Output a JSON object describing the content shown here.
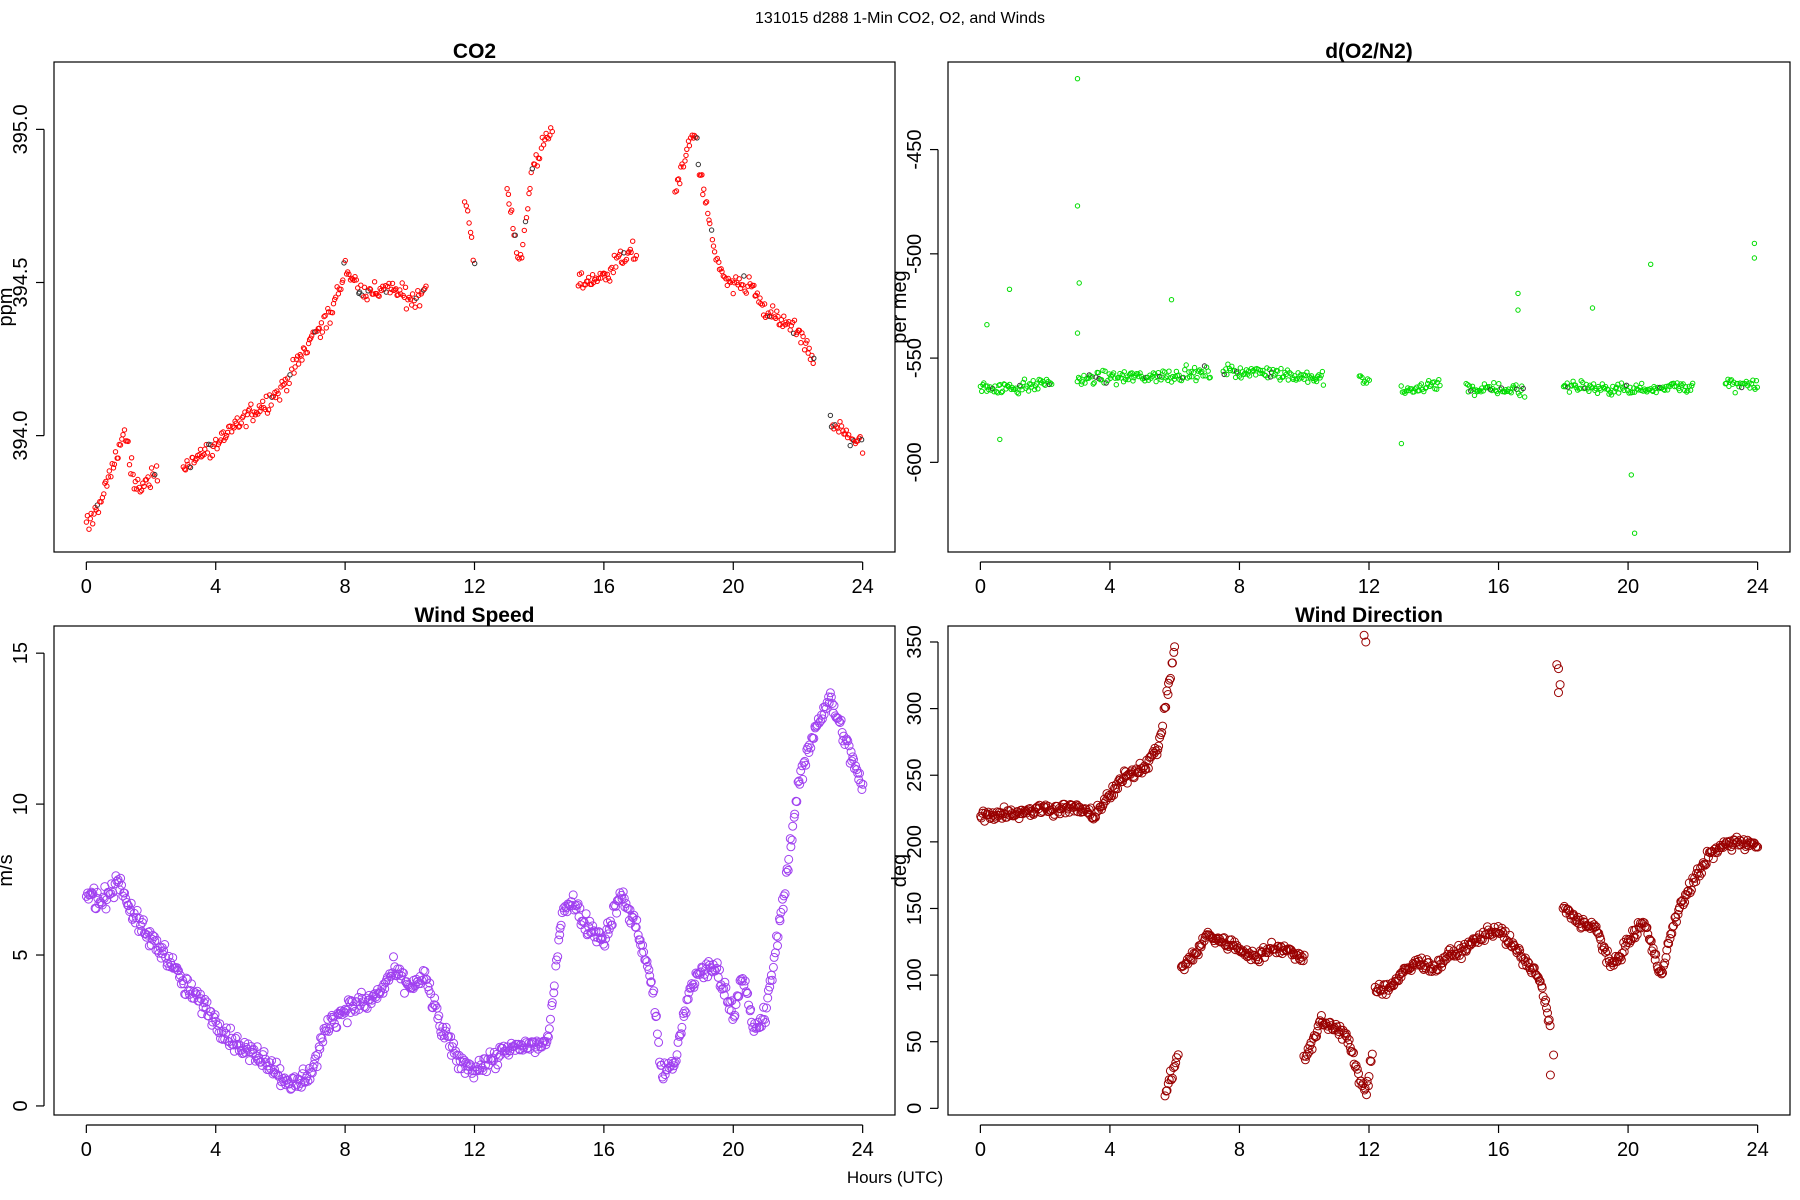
{
  "figure": {
    "title": "131015   d288   1-Min CO2, O2, and Winds",
    "xlabel": "Hours (UTC)"
  },
  "chart_data": [
    {
      "type": "scatter",
      "title": "CO2",
      "ylabel": "ppm",
      "xlim": [
        -1,
        25
      ],
      "ylim": [
        393.62,
        395.22
      ],
      "xticks": [
        0,
        4,
        8,
        12,
        16,
        20,
        24
      ],
      "yticks": [
        394.0,
        394.5,
        395.0
      ],
      "ytick_labels": [
        "394.0",
        "394.5",
        "395.0"
      ],
      "color": "#ff0000",
      "segments": [
        {
          "x": [
            0.0,
            0.5,
            1.2,
            1.5,
            2.2
          ],
          "y": [
            393.7,
            393.8,
            394.02,
            393.82,
            393.88
          ]
        },
        {
          "x": [
            3.0,
            4.0,
            5.0,
            5.5,
            6.0,
            6.6,
            7.0,
            7.6,
            8.0,
            8.5,
            9.0,
            9.5,
            10.0,
            10.5
          ],
          "y": [
            393.9,
            393.97,
            394.07,
            394.1,
            394.15,
            394.25,
            394.33,
            394.4,
            394.55,
            394.47,
            394.47,
            394.48,
            394.44,
            394.48
          ]
        },
        {
          "x": [
            11.7,
            12.0
          ],
          "y": [
            394.8,
            394.56
          ]
        },
        {
          "x": [
            13.0,
            13.4,
            13.8,
            14.4
          ],
          "y": [
            394.82,
            394.55,
            394.88,
            395.0
          ]
        },
        {
          "x": [
            15.2,
            16.0,
            16.5,
            17.0
          ],
          "y": [
            394.5,
            394.52,
            394.58,
            394.6
          ]
        },
        {
          "x": [
            18.2,
            18.8,
            19.0,
            19.5,
            20.0,
            20.5,
            21.0,
            21.5,
            22.0,
            22.5
          ],
          "y": [
            394.8,
            395.0,
            394.85,
            394.55,
            394.48,
            394.5,
            394.4,
            394.38,
            394.33,
            394.25
          ]
        },
        {
          "x": [
            23.0,
            23.5,
            24.0
          ],
          "y": [
            394.05,
            394.0,
            393.97
          ]
        }
      ]
    },
    {
      "type": "scatter",
      "title": "d(O2/N2)",
      "ylabel": "per meg",
      "xlim": [
        -1,
        25
      ],
      "ylim": [
        -643,
        -408
      ],
      "xticks": [
        0,
        4,
        8,
        12,
        16,
        20,
        24
      ],
      "yticks": [
        -600,
        -550,
        -500,
        -450
      ],
      "ytick_labels": [
        "-600",
        "-550",
        "-500",
        "-450"
      ],
      "color": "#00dd00",
      "segments": [
        {
          "x": [
            0.0,
            1.0,
            2.2
          ],
          "y": [
            -564,
            -564,
            -562
          ]
        },
        {
          "x": [
            3.0,
            5.0,
            7.1
          ],
          "y": [
            -560,
            -559,
            -557
          ]
        },
        {
          "x": [
            7.5,
            9.0,
            10.6
          ],
          "y": [
            -556,
            -557,
            -560
          ]
        },
        {
          "x": [
            11.7,
            12.0
          ],
          "y": [
            -560,
            -562
          ]
        },
        {
          "x": [
            13.0,
            14.2
          ],
          "y": [
            -566,
            -562
          ]
        },
        {
          "x": [
            15.0,
            16.8
          ],
          "y": [
            -565,
            -565
          ]
        },
        {
          "x": [
            18.0,
            20.0,
            22.0
          ],
          "y": [
            -563,
            -565,
            -563
          ]
        },
        {
          "x": [
            23.0,
            24.0
          ],
          "y": [
            -563,
            -563
          ]
        }
      ],
      "outliers": [
        {
          "x": 3.0,
          "y": -416
        },
        {
          "x": 3.0,
          "y": -477
        },
        {
          "x": 3.05,
          "y": -514
        },
        {
          "x": 3.0,
          "y": -538
        },
        {
          "x": 20.2,
          "y": -634
        },
        {
          "x": 20.1,
          "y": -606
        },
        {
          "x": 20.7,
          "y": -505
        },
        {
          "x": 23.9,
          "y": -495
        },
        {
          "x": 23.9,
          "y": -502
        },
        {
          "x": 0.9,
          "y": -517
        },
        {
          "x": 0.2,
          "y": -534
        },
        {
          "x": 5.9,
          "y": -522
        },
        {
          "x": 16.6,
          "y": -519
        },
        {
          "x": 16.6,
          "y": -527
        },
        {
          "x": 18.9,
          "y": -526
        },
        {
          "x": 13.0,
          "y": -591
        },
        {
          "x": 0.6,
          "y": -589
        }
      ]
    },
    {
      "type": "scatter",
      "title": "Wind Speed",
      "ylabel": "m/s",
      "xlim": [
        -1,
        25
      ],
      "ylim": [
        -0.3,
        15.9
      ],
      "xticks": [
        0,
        4,
        8,
        12,
        16,
        20,
        24
      ],
      "yticks": [
        0,
        5,
        10,
        15
      ],
      "ytick_labels": [
        "0",
        "5",
        "10",
        "15"
      ],
      "color": "#a040f0",
      "segments": [
        {
          "x": [
            0.0,
            0.5,
            1.0,
            1.5,
            2.0,
            2.5,
            3.0,
            3.5,
            4.0,
            4.5,
            5.0,
            5.5,
            6.0,
            6.5,
            7.0,
            7.5,
            8.0,
            8.5,
            9.0,
            9.5,
            10.0,
            10.5,
            11.0,
            11.5,
            12.0,
            12.5,
            13.0,
            13.5,
            14.0,
            14.3,
            14.7,
            15.0,
            15.5,
            16.0,
            16.5,
            17.0,
            17.5,
            17.8,
            18.2,
            18.7,
            19.0,
            19.5,
            20.0,
            20.3,
            20.6,
            21.0,
            21.5,
            22.0,
            22.5,
            23.0,
            23.5,
            24.0
          ],
          "y": [
            7.0,
            6.8,
            7.5,
            6.2,
            5.5,
            5.0,
            4.0,
            3.5,
            2.8,
            2.2,
            1.8,
            1.6,
            1.0,
            0.7,
            1.2,
            2.8,
            3.2,
            3.4,
            3.6,
            4.5,
            4.0,
            4.2,
            2.5,
            1.5,
            1.2,
            1.5,
            1.8,
            2.0,
            2.0,
            2.2,
            6.5,
            6.8,
            6.0,
            5.5,
            7.0,
            6.0,
            4.0,
            1.0,
            1.5,
            4.0,
            4.5,
            4.5,
            3.0,
            4.5,
            2.5,
            3.0,
            6.5,
            10.5,
            12.5,
            13.5,
            12.0,
            10.5
          ]
        }
      ]
    },
    {
      "type": "scatter",
      "title": "Wind Direction",
      "ylabel": "deg",
      "xlim": [
        -1,
        25
      ],
      "ylim": [
        -5,
        362
      ],
      "xticks": [
        0,
        4,
        8,
        12,
        16,
        20,
        24
      ],
      "yticks": [
        0,
        50,
        100,
        150,
        200,
        250,
        300,
        350
      ],
      "ytick_labels": [
        "0",
        "50",
        "100",
        "150",
        "200",
        "250",
        "300",
        "350"
      ],
      "color": "#990000",
      "segments": [
        {
          "x": [
            0.0,
            1.0,
            2.0,
            3.0,
            3.5,
            4.0,
            4.5,
            5.0,
            5.5,
            6.0
          ],
          "y": [
            220,
            222,
            225,
            225,
            220,
            235,
            250,
            255,
            270,
            345
          ]
        },
        {
          "x": [
            5.7,
            6.1
          ],
          "y": [
            10,
            40
          ]
        },
        {
          "x": [
            6.2,
            6.6,
            7.0,
            7.5,
            8.0,
            8.5,
            9.0,
            9.5,
            10.0
          ],
          "y": [
            105,
            115,
            130,
            125,
            120,
            112,
            122,
            118,
            112
          ]
        },
        {
          "x": [
            10.0,
            10.2,
            10.5,
            11.0,
            11.3,
            11.6,
            11.9,
            12.1
          ],
          "y": [
            40,
            45,
            65,
            60,
            55,
            30,
            10,
            40
          ]
        },
        {
          "x": [
            12.2,
            12.6,
            13.0,
            13.5,
            14.0,
            14.5,
            15.0,
            15.5,
            16.0,
            16.5,
            17.0,
            17.3,
            17.6
          ],
          "y": [
            90,
            90,
            100,
            110,
            105,
            115,
            120,
            130,
            135,
            120,
            105,
            95,
            60
          ]
        },
        {
          "x": [
            18.0,
            18.5,
            19.0,
            19.5,
            20.0,
            20.5,
            21.0,
            21.5,
            22.0,
            22.5,
            23.0,
            23.5,
            24.0
          ],
          "y": [
            150,
            140,
            135,
            105,
            125,
            140,
            100,
            145,
            170,
            190,
            198,
            200,
            197
          ]
        }
      ],
      "outliers": [
        {
          "x": 11.85,
          "y": 355
        },
        {
          "x": 11.9,
          "y": 350
        },
        {
          "x": 17.8,
          "y": 333
        },
        {
          "x": 17.85,
          "y": 330
        },
        {
          "x": 17.9,
          "y": 318
        },
        {
          "x": 17.85,
          "y": 312
        },
        {
          "x": 17.6,
          "y": 25
        },
        {
          "x": 17.7,
          "y": 40
        }
      ]
    }
  ]
}
